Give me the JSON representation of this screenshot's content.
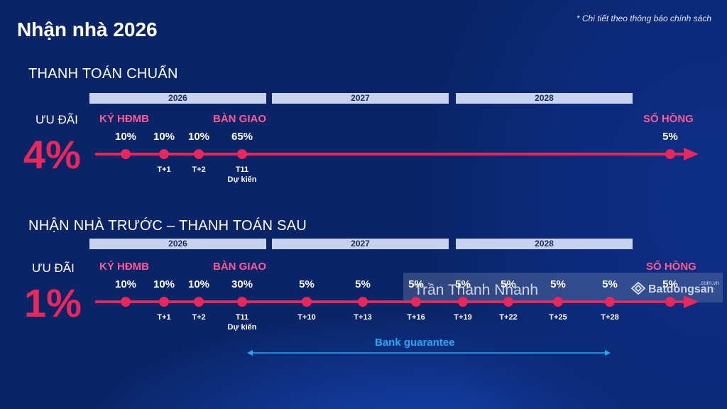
{
  "title": "Nhận nhà 2026",
  "note": "* Chi tiết theo thông báo chính sách",
  "colors": {
    "background": "#0a2468",
    "accent": "#e8275a",
    "milestone": "#ff5a93",
    "bank": "#27a8f0",
    "year_bar": "#c7d3ee"
  },
  "plan1": {
    "title": "THANH TOÁN CHUẨN",
    "years": [
      "2026",
      "2027",
      "2028"
    ],
    "uudai_label": "ƯU ĐÃI",
    "uudai_value": "4%",
    "milestones": {
      "kyhdmb": "KÝ HĐMB",
      "bangiao": "BÀN GIAO",
      "sohong": "SỔ HỒNG"
    },
    "points": [
      {
        "pct": "10%",
        "tick": ""
      },
      {
        "pct": "10%",
        "tick": "T+1"
      },
      {
        "pct": "10%",
        "tick": "T+2"
      },
      {
        "pct": "65%",
        "tick": "T11",
        "tick2": "Dự kiến"
      },
      {
        "pct": "5%",
        "tick": ""
      }
    ]
  },
  "plan2": {
    "title": "NHẬN NHÀ TRƯỚC – THANH TOÁN SAU",
    "years": [
      "2026",
      "2027",
      "2028"
    ],
    "uudai_label": "ƯU ĐÃI",
    "uudai_value": "1%",
    "milestones": {
      "kyhdmb": "KÝ HĐMB",
      "bangiao": "BÀN GIAO",
      "sohong": "SỔ HỒNG"
    },
    "points": [
      {
        "pct": "10%",
        "tick": ""
      },
      {
        "pct": "10%",
        "tick": "T+1"
      },
      {
        "pct": "10%",
        "tick": "T+2"
      },
      {
        "pct": "30%",
        "tick": "T11",
        "tick2": "Dự kiến"
      },
      {
        "pct": "5%",
        "tick": "T+10"
      },
      {
        "pct": "5%",
        "tick": "T+13"
      },
      {
        "pct": "5%",
        "tick": "T+16"
      },
      {
        "pct": "5%",
        "tick": "T+19"
      },
      {
        "pct": "5%",
        "tick": "T+22"
      },
      {
        "pct": "5%",
        "tick": "T+25"
      },
      {
        "pct": "5%",
        "tick": "T+28"
      },
      {
        "pct": "5%",
        "tick": ""
      }
    ],
    "bank_label": "Bank guarantee"
  },
  "watermark": {
    "name": "Trần Thành Nhanh",
    "logo": "Batdongsan",
    "suffix": ".com.vn"
  }
}
